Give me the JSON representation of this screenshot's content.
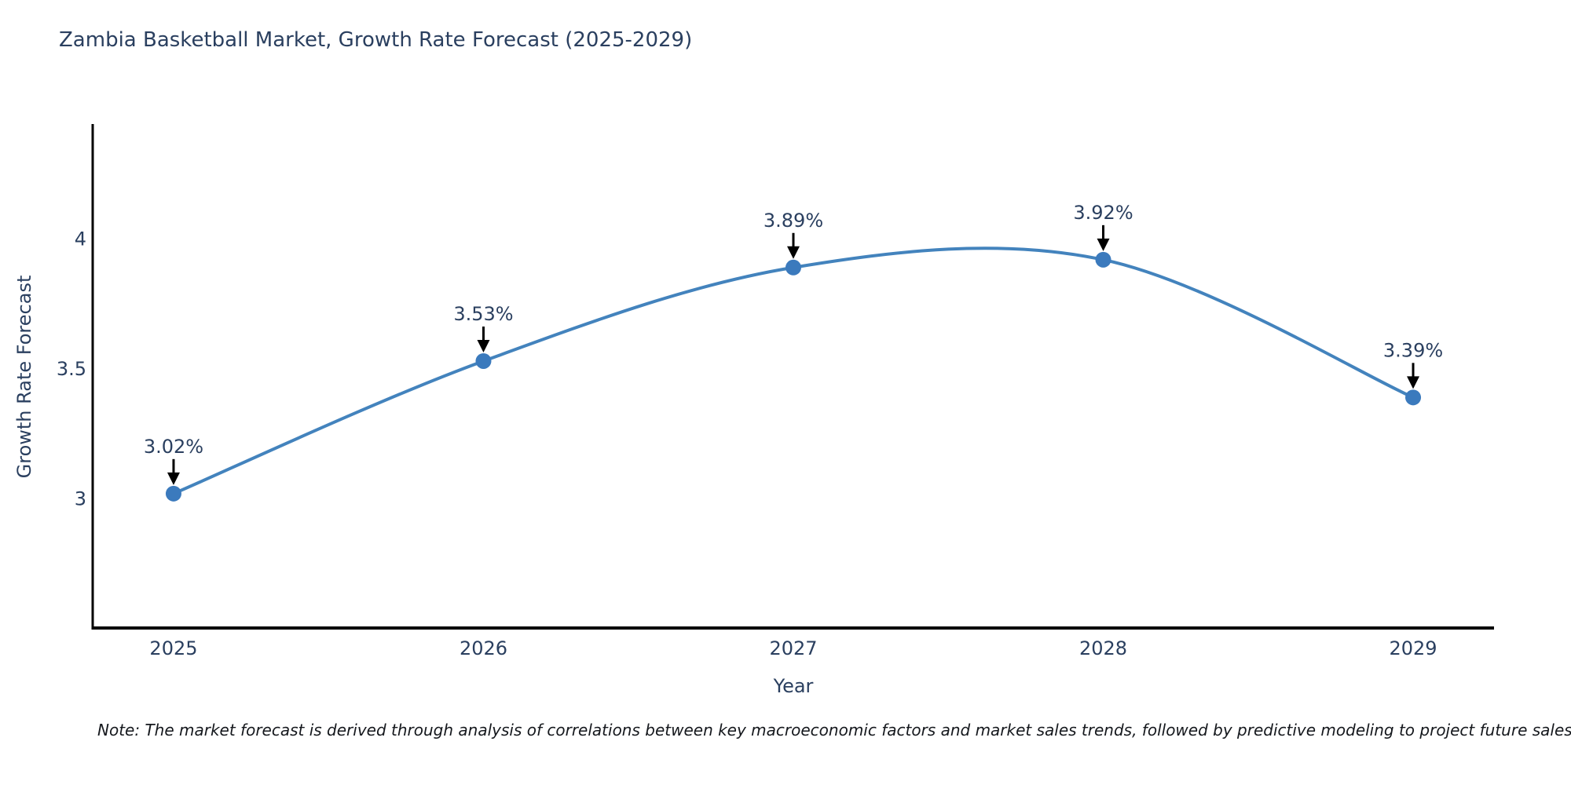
{
  "title": "Zambia Basketball Market, Growth Rate Forecast (2025-2029)",
  "note": "Note: The market forecast is derived through analysis of correlations between key macroeconomic factors and market sales trends, followed by predictive modeling to project future sales",
  "chart_data": {
    "type": "line",
    "title": "Zambia Basketball Market, Growth Rate Forecast (2025-2029)",
    "xlabel": "Year",
    "ylabel": "Growth Rate Forecast",
    "x": [
      2025,
      2026,
      2027,
      2028,
      2029
    ],
    "series": [
      {
        "name": "Growth Rate Forecast",
        "values": [
          3.02,
          3.53,
          3.89,
          3.92,
          3.39
        ]
      }
    ],
    "point_labels": [
      "3.02%",
      "3.53%",
      "3.89%",
      "3.92%",
      "3.39%"
    ],
    "xtick_labels": [
      "2025",
      "2026",
      "2027",
      "2028",
      "2029"
    ],
    "ytick_values": [
      3,
      3.5,
      4
    ],
    "ytick_labels": [
      "3",
      "3.5",
      "4"
    ],
    "xlim": [
      2024.739,
      2029.261
    ],
    "ylim": [
      2.503,
      4.442
    ],
    "grid": false,
    "legend": "none",
    "annotation_style": "value-label-with-down-arrow-to-point",
    "colors": {
      "line": "#4383bd",
      "marker": "#3b7abd",
      "axis": "#000000",
      "text": "#2a3f5f",
      "arrow": "#000000",
      "note_text": "#15181d",
      "background": "#ffffff"
    }
  }
}
